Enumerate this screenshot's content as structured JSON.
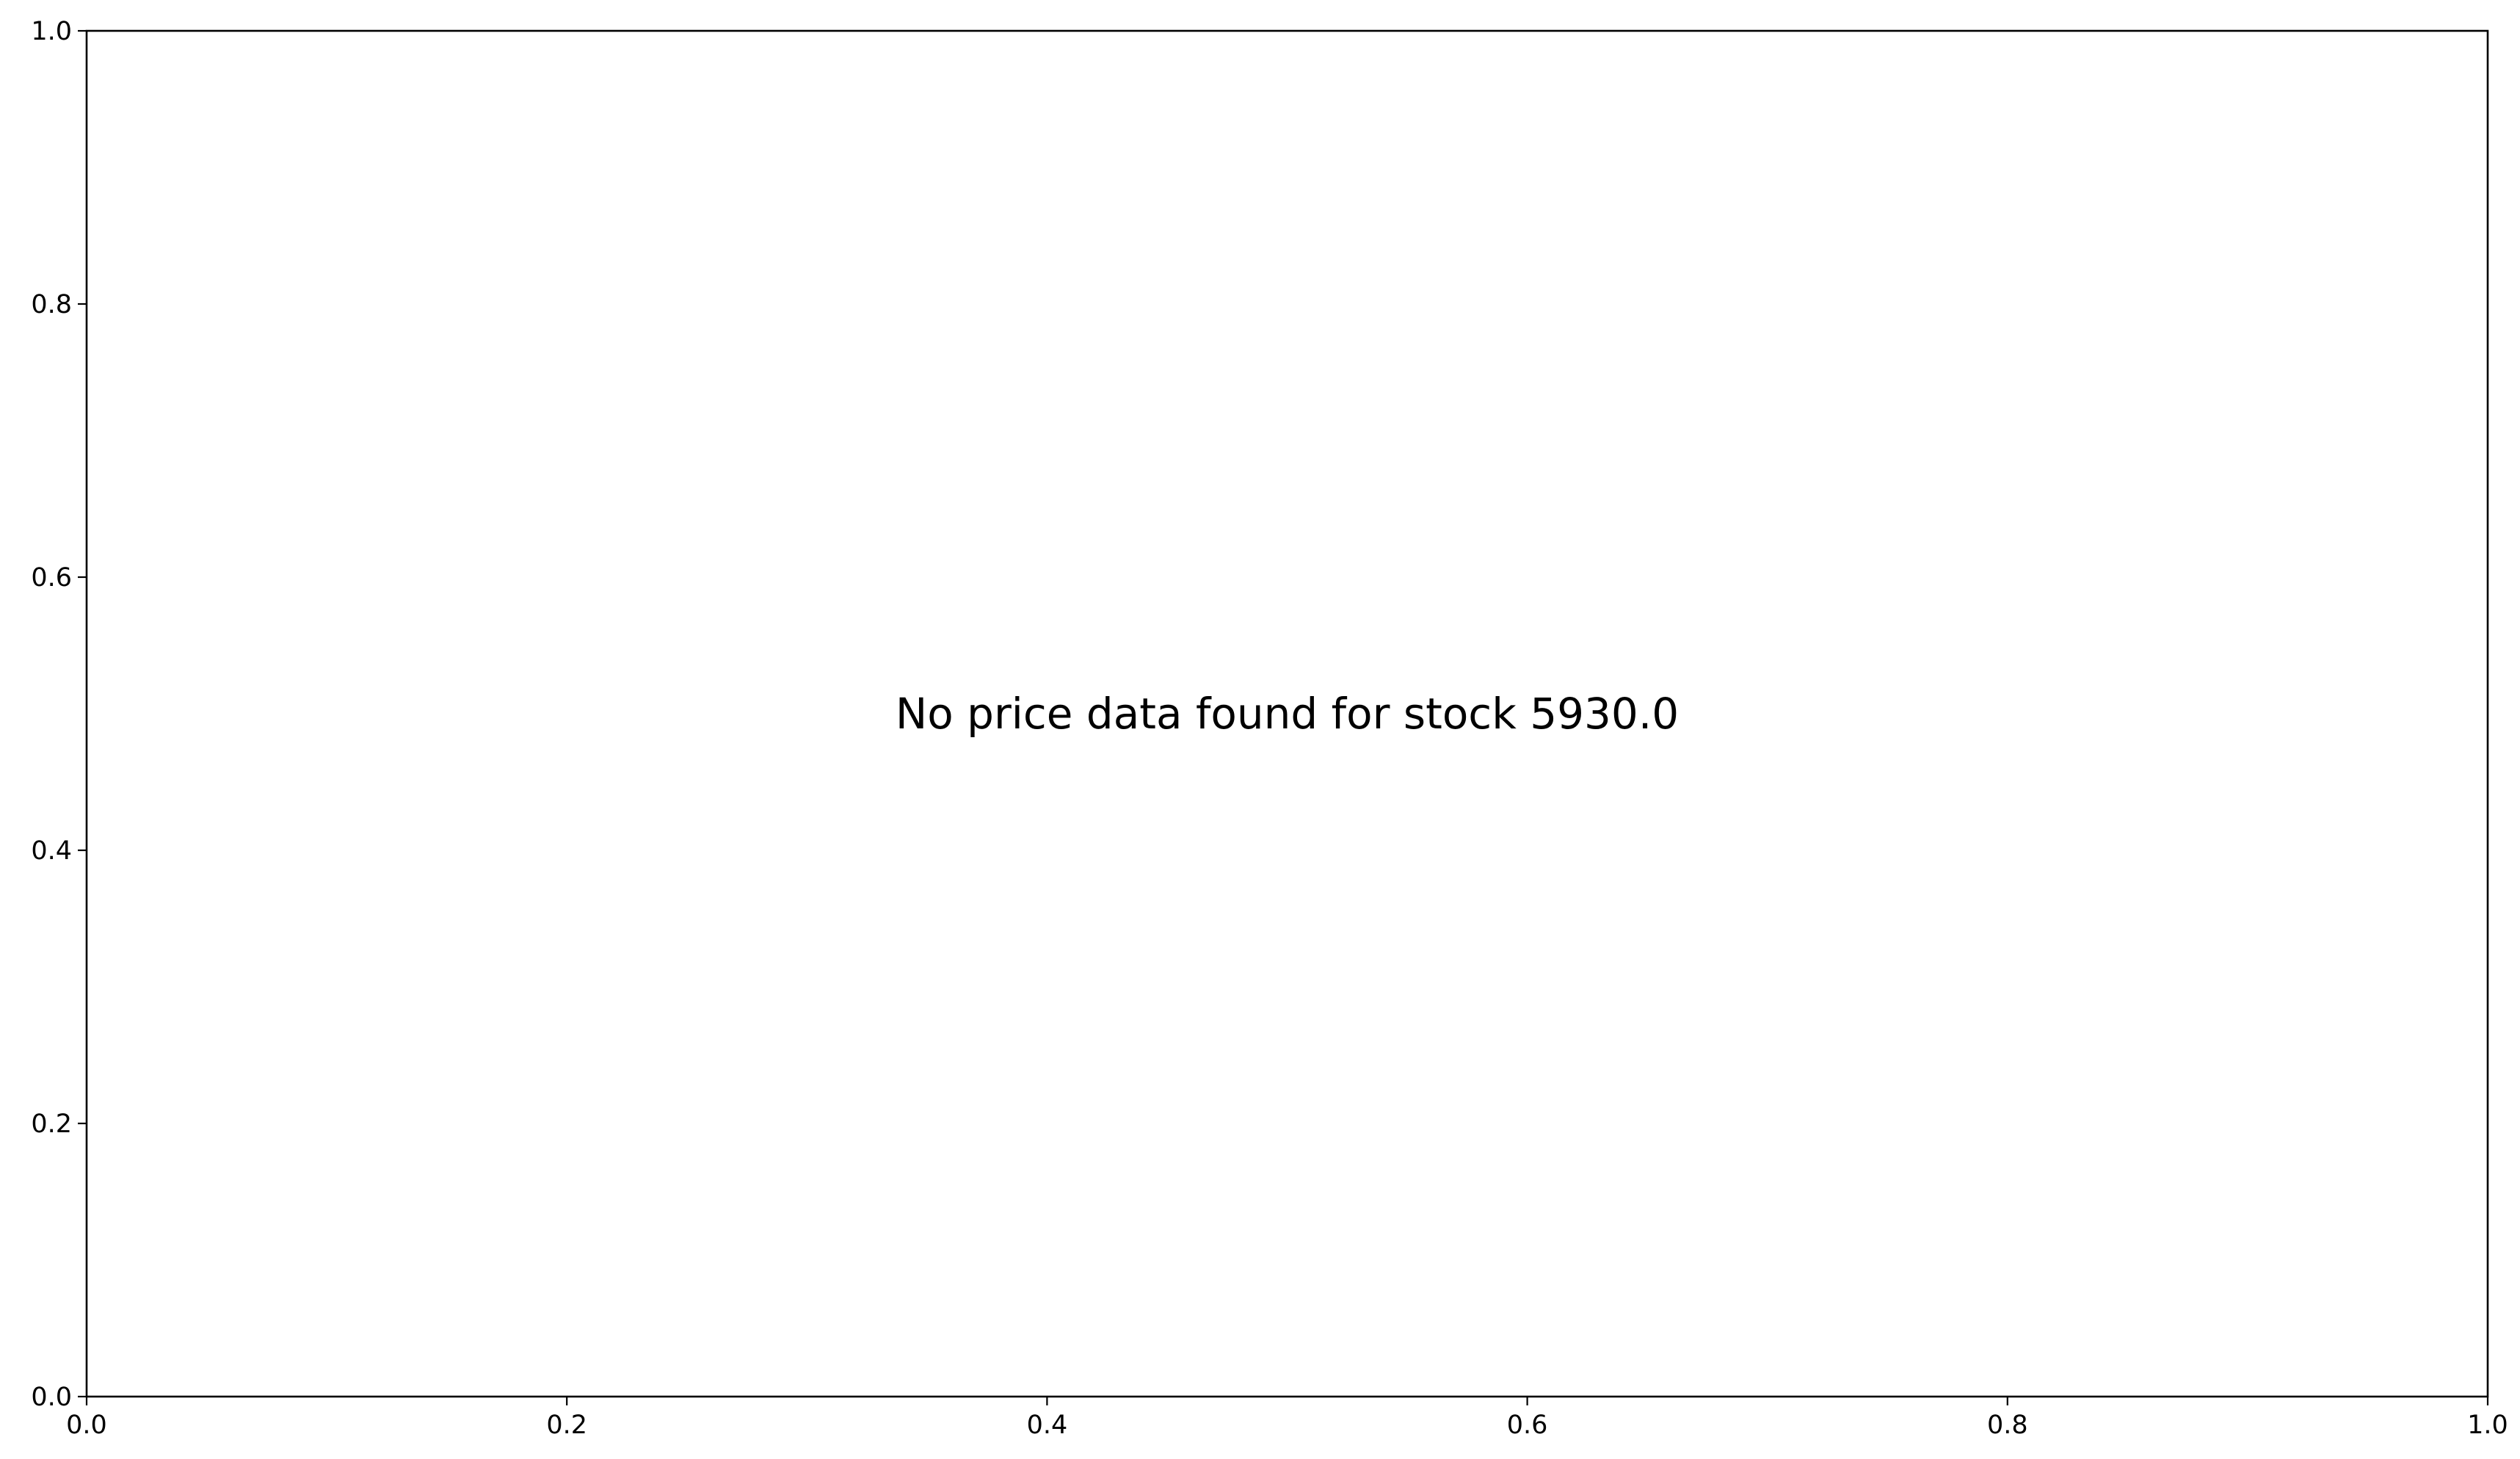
{
  "chart_data": {
    "type": "line",
    "title": "",
    "xlabel": "",
    "ylabel": "",
    "xlim": [
      0.0,
      1.0
    ],
    "ylim": [
      0.0,
      1.0
    ],
    "x_ticks": [
      0.0,
      0.2,
      0.4,
      0.6,
      0.8,
      1.0
    ],
    "x_tick_labels": [
      "0.0",
      "0.2",
      "0.4",
      "0.6",
      "0.8",
      "1.0"
    ],
    "y_ticks": [
      0.0,
      0.2,
      0.4,
      0.6,
      0.8,
      1.0
    ],
    "y_tick_labels": [
      "0.0",
      "0.2",
      "0.4",
      "0.6",
      "0.8",
      "1.0"
    ],
    "grid": false,
    "series": [],
    "annotations": [
      {
        "text": "No price data found for stock 5930.0",
        "x": 0.5,
        "y": 0.5
      }
    ]
  },
  "colors": {
    "background": "#ffffff",
    "axes": "#000000",
    "text": "#000000"
  }
}
